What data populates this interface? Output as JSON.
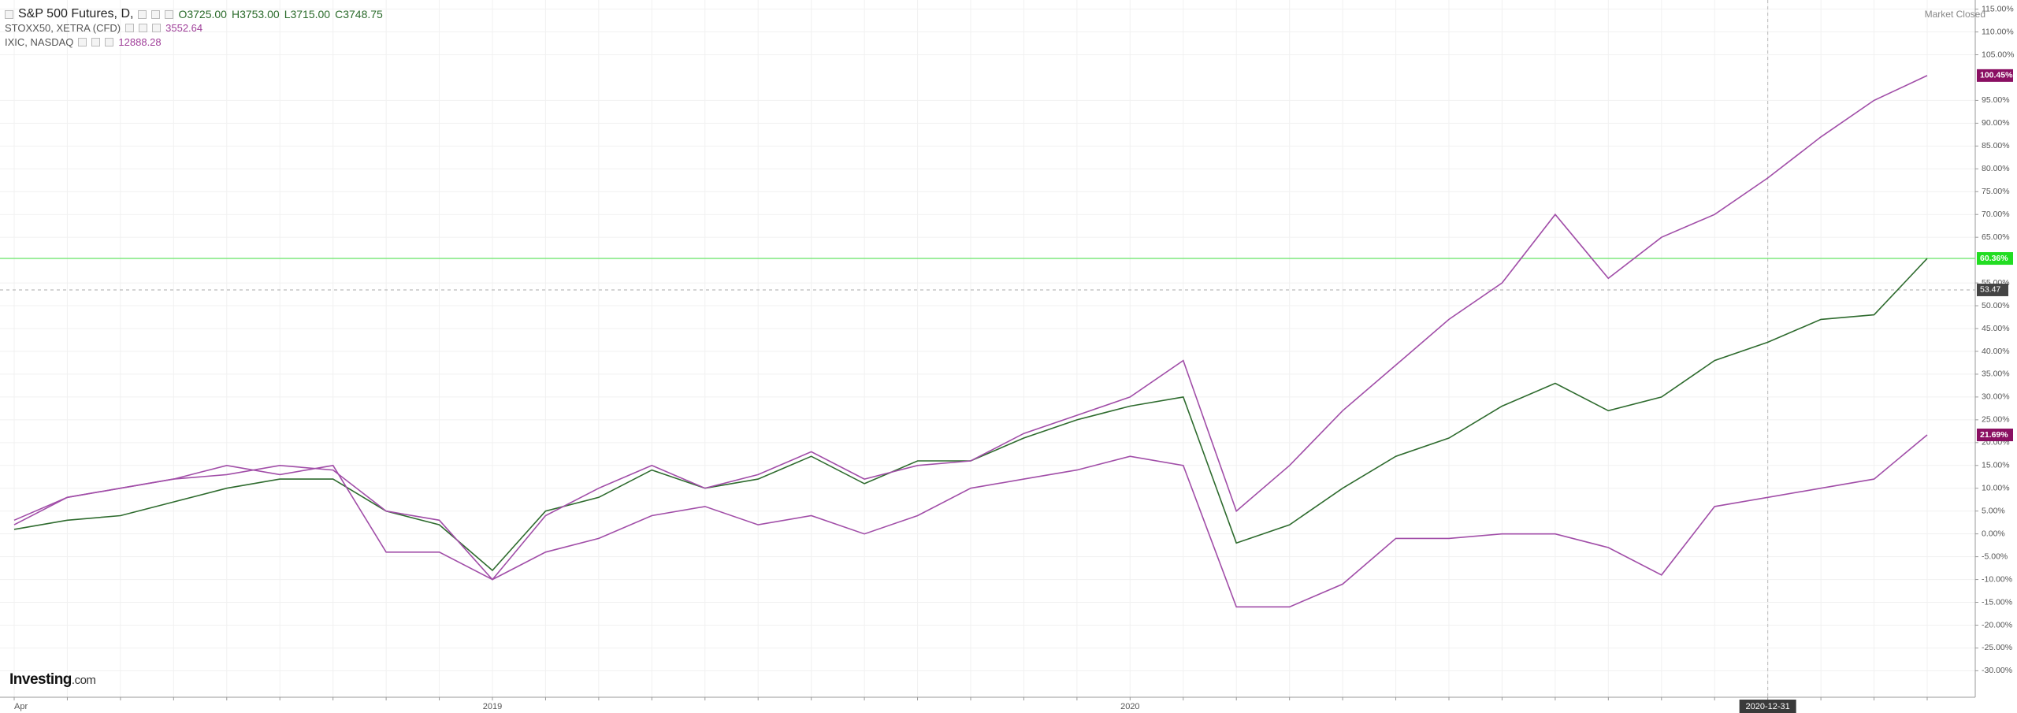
{
  "header": {
    "symbol": "S&P 500 Futures, D,",
    "ohlc": [
      {
        "key": "O",
        "value": "3725.00"
      },
      {
        "key": "H",
        "value": "3753.00"
      },
      {
        "key": "L",
        "value": "3715.00"
      },
      {
        "key": "C",
        "value": "3748.75"
      }
    ],
    "status": "Market Closed",
    "logo": {
      "brand": "Investing",
      "domain": ".com"
    }
  },
  "chart_data": {
    "type": "line",
    "categories": [
      "Apr",
      null,
      null,
      null,
      null,
      null,
      null,
      null,
      null,
      "2019",
      null,
      null,
      null,
      null,
      null,
      null,
      null,
      null,
      null,
      null,
      null,
      "2020",
      null,
      null,
      null,
      null,
      null,
      null,
      null,
      null,
      null,
      null,
      null,
      "2020-12-31",
      null,
      null,
      null
    ],
    "series": [
      {
        "name": "S&P 500 Futures",
        "color": "#2e6b2e",
        "label_color": "#22dd22",
        "last_line": true,
        "values": [
          1,
          3,
          4,
          7,
          10,
          12,
          12,
          5,
          2,
          -8,
          5,
          8,
          14,
          10,
          12,
          17,
          11,
          16,
          16,
          21,
          25,
          28,
          30,
          -2,
          2,
          10,
          17,
          21,
          28,
          33,
          27,
          30,
          38,
          42,
          47,
          48,
          60.36
        ],
        "value_labels": [
          null,
          null,
          null,
          null,
          null,
          null,
          null,
          null,
          null,
          null,
          null,
          null,
          null,
          null,
          null,
          null,
          null,
          null,
          null,
          null,
          null,
          null,
          null,
          null,
          null,
          null,
          null,
          null,
          null,
          null,
          null,
          null,
          null,
          null,
          null,
          null,
          "60.36%"
        ]
      },
      {
        "name": "STOXX50, XETRA (CFD)",
        "last": "3552.64",
        "color": "#a14ea8",
        "label_color": "#8a0f62",
        "values": [
          3,
          8,
          10,
          12,
          15,
          13,
          15,
          -4,
          -4,
          -10,
          -4,
          -1,
          4,
          6,
          2,
          4,
          0,
          4,
          10,
          12,
          14,
          17,
          15,
          -16,
          -16,
          -11,
          -1,
          -1,
          0,
          0,
          -3,
          -9,
          6,
          8,
          10,
          12,
          21.69
        ],
        "value_labels": [
          null,
          null,
          null,
          null,
          null,
          null,
          null,
          null,
          null,
          null,
          null,
          null,
          null,
          null,
          null,
          null,
          null,
          null,
          null,
          null,
          null,
          null,
          null,
          null,
          null,
          null,
          null,
          null,
          null,
          null,
          null,
          null,
          null,
          null,
          null,
          null,
          "21.69%"
        ]
      },
      {
        "name": "IXIC, NASDAQ",
        "last": "12888.28",
        "color": "#a14ea8",
        "label_color": "#8a0f62",
        "values": [
          2,
          8,
          10,
          12,
          13,
          15,
          14,
          5,
          3,
          -10,
          4,
          10,
          15,
          10,
          13,
          18,
          12,
          15,
          16,
          22,
          26,
          30,
          38,
          5,
          15,
          27,
          37,
          47,
          55,
          70,
          56,
          65,
          70,
          78,
          87,
          95,
          100.45
        ],
        "value_labels": [
          null,
          null,
          null,
          null,
          null,
          null,
          null,
          null,
          null,
          null,
          null,
          null,
          null,
          null,
          null,
          null,
          null,
          null,
          null,
          null,
          null,
          null,
          null,
          null,
          null,
          null,
          null,
          null,
          null,
          null,
          null,
          null,
          null,
          null,
          null,
          null,
          "100.45%"
        ]
      }
    ],
    "ylim": [
      -35.8,
      117
    ],
    "yticks": [
      {
        "value": 115,
        "label": "115.00%"
      },
      {
        "value": 110,
        "label": "110.00%"
      },
      {
        "value": 105,
        "label": "105.00%"
      },
      {
        "value": 95,
        "label": "95.00%"
      },
      {
        "value": 90,
        "label": "90.00%"
      },
      {
        "value": 85,
        "label": "85.00%"
      },
      {
        "value": 80,
        "label": "80.00%"
      },
      {
        "value": 75,
        "label": "75.00%"
      },
      {
        "value": 70,
        "label": "70.00%"
      },
      {
        "value": 65,
        "label": "65.00%"
      },
      {
        "value": 55,
        "label": "55.00%"
      },
      {
        "value": 50,
        "label": "50.00%"
      },
      {
        "value": 45,
        "label": "45.00%"
      },
      {
        "value": 40,
        "label": "40.00%"
      },
      {
        "value": 35,
        "label": "35.00%"
      },
      {
        "value": 30,
        "label": "30.00%"
      },
      {
        "value": 25,
        "label": "25.00%"
      },
      {
        "value": 20,
        "label": "20.00%"
      },
      {
        "value": 15,
        "label": "15.00%"
      },
      {
        "value": 10,
        "label": "10.00%"
      },
      {
        "value": 5,
        "label": "5.00%"
      },
      {
        "value": 0,
        "label": "0.00%"
      },
      {
        "value": -5,
        "label": "-5.00%"
      },
      {
        "value": -10,
        "label": "-10.00%"
      },
      {
        "value": -15,
        "label": "-15.00%"
      },
      {
        "value": -20,
        "label": "-20.00%"
      },
      {
        "value": -25,
        "label": "-25.00%"
      },
      {
        "value": -30,
        "label": "-30.00%"
      }
    ],
    "grid": true,
    "crosshair": {
      "y": 53.47,
      "y_label": "53.47"
    }
  }
}
